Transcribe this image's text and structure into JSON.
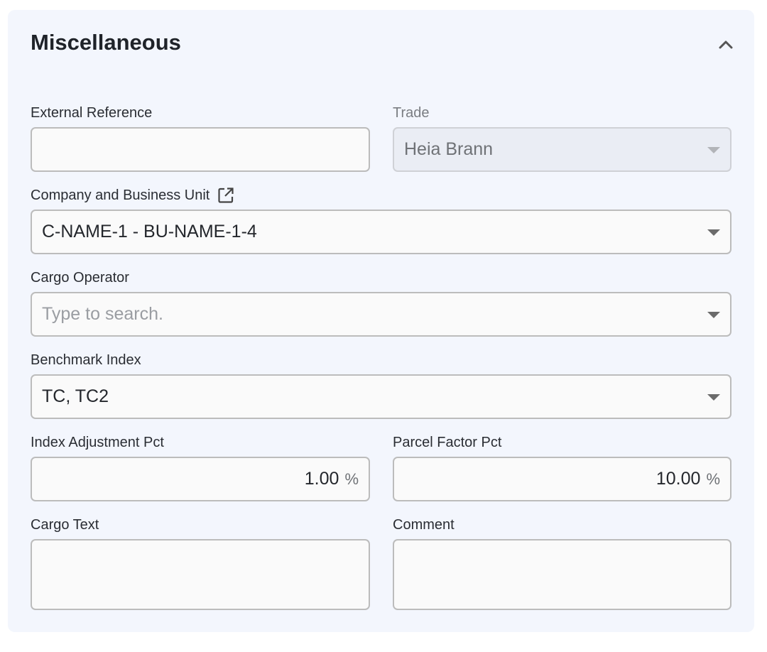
{
  "section": {
    "title": "Miscellaneous",
    "collapse_icon": "chevron-up-icon"
  },
  "fields": {
    "external_reference": {
      "label": "External Reference",
      "value": ""
    },
    "trade": {
      "label": "Trade",
      "value": "Heia Brann",
      "disabled": true
    },
    "company_bu": {
      "label": "Company and Business Unit",
      "value": "C-NAME-1 - BU-NAME-1-4",
      "icon": "open-external-icon"
    },
    "cargo_operator": {
      "label": "Cargo Operator",
      "placeholder": "Type to search."
    },
    "benchmark_index": {
      "label": "Benchmark Index",
      "value": "TC, TC2"
    },
    "index_adjustment_pct": {
      "label": "Index Adjustment Pct",
      "value": "1.00",
      "unit": "%"
    },
    "parcel_factor_pct": {
      "label": "Parcel Factor Pct",
      "value": "10.00",
      "unit": "%"
    },
    "cargo_text": {
      "label": "Cargo Text",
      "value": ""
    },
    "comment": {
      "label": "Comment",
      "value": ""
    }
  }
}
